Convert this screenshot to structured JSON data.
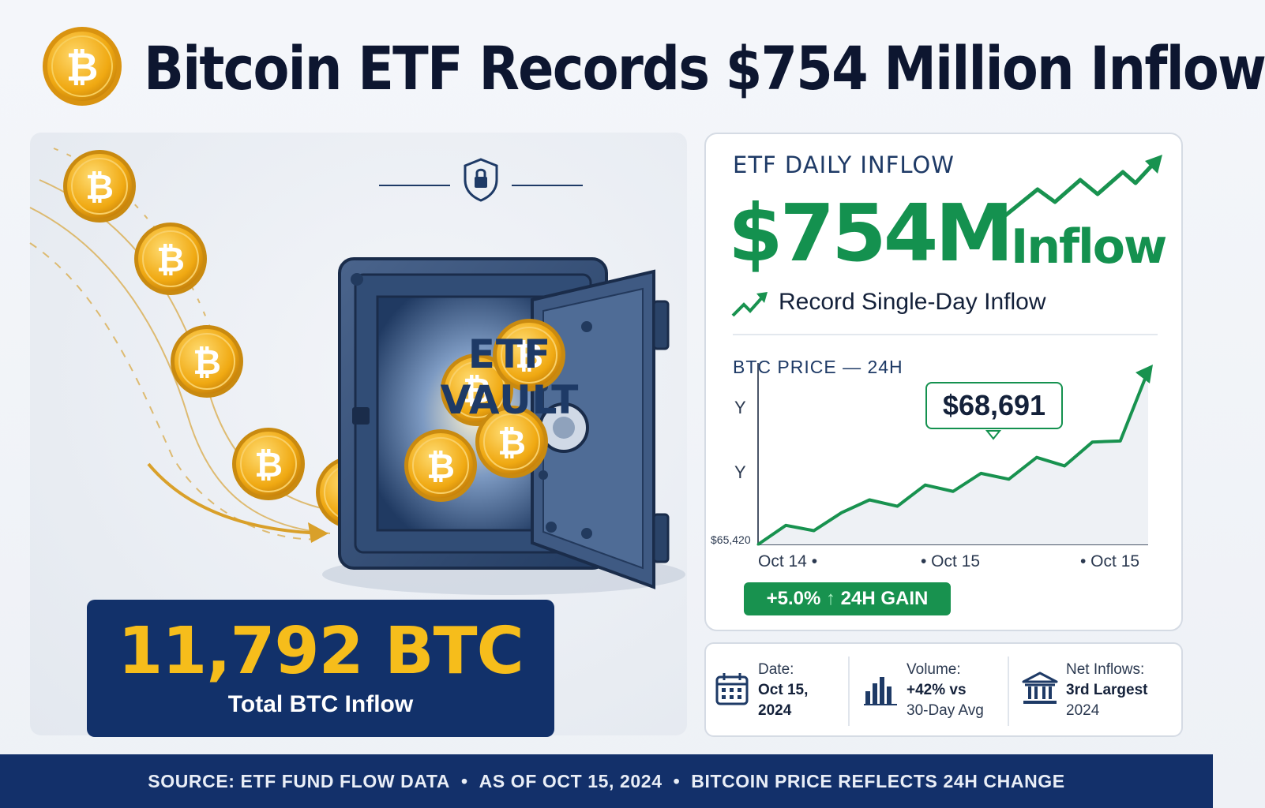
{
  "header": {
    "title": "Bitcoin ETF Records $754 Million Inflow",
    "icon": "bitcoin-coin-icon"
  },
  "vault": {
    "label": "ETF VAULT",
    "btc_amount": "11,792 BTC",
    "btc_caption": "Total BTC Inflow"
  },
  "inflow": {
    "heading": "ETF DAILY INFLOW",
    "amount": "$754M",
    "word": "Inflow",
    "record_label": "Record Single-Day Inflow"
  },
  "price_chart": {
    "heading": "BTC PRICE — 24H",
    "callout": "$68,691",
    "gain_value": "+5.0%",
    "gain_arrow": "↑",
    "gain_label": "24H GAIN"
  },
  "chart_data": {
    "type": "line",
    "title": "BTC PRICE — 24H",
    "y_ticks": [
      "Y",
      "Y",
      "$65,420"
    ],
    "x_ticks": [
      "Oct 14 •",
      "• Oct 15",
      "• Oct 15"
    ],
    "series": [
      {
        "values": [
          65420,
          65780,
          65680,
          66020,
          66260,
          66140,
          66540,
          66420,
          66760,
          66650,
          67060,
          66900,
          67350,
          67370,
          68691
        ]
      }
    ],
    "ylim": [
      65420,
      68691
    ],
    "annotation": "$68,691",
    "grid": true,
    "color": "#18924f"
  },
  "stats": [
    {
      "icon": "calendar-icon",
      "label": "Date:",
      "value": "Oct 15,",
      "value2": "2024"
    },
    {
      "icon": "bar-chart-icon",
      "label": "Volume:",
      "value": "+42% vs",
      "value2": "30-Day Avg"
    },
    {
      "icon": "bank-icon",
      "label": "Net Inflows:",
      "value": "3rd Largest",
      "value2": "2024"
    }
  ],
  "footer": {
    "part1": "SOURCE: ETF FUND FLOW DATA",
    "part2": "AS OF OCT 15, 2024",
    "part3": "BITCOIN PRICE REFLECTS 24H CHANGE",
    "separator": "•"
  },
  "colors": {
    "navy": "#12316a",
    "green": "#14914f",
    "gold": "#f6bd1b",
    "title": "#0d1630"
  }
}
